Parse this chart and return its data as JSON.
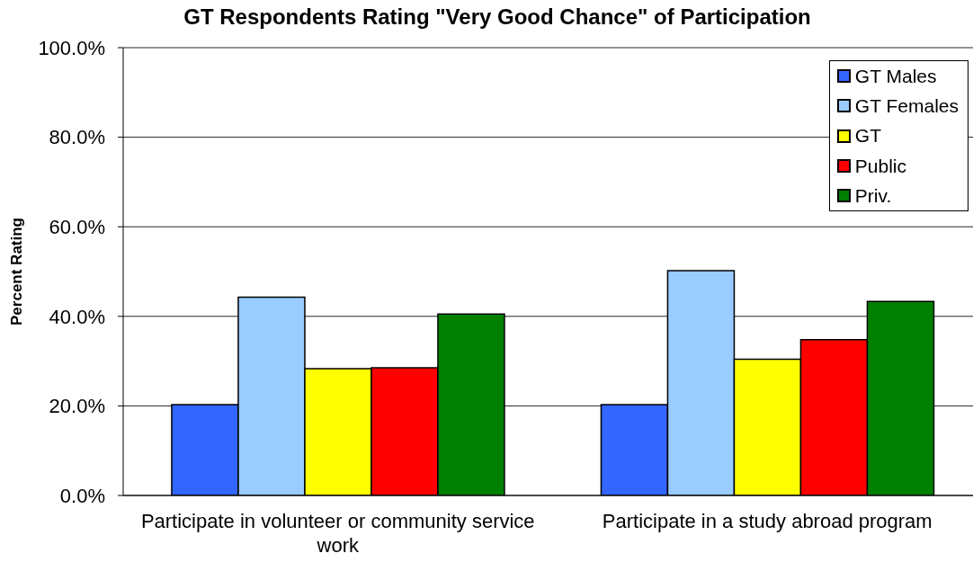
{
  "chart_data": {
    "type": "bar",
    "title": "GT Respondents Rating \"Very Good Chance\" of Participation",
    "ylabel": "Percent Rating",
    "categories": [
      "Participate in volunteer or community service work",
      "Participate in a study abroad program"
    ],
    "series": [
      {
        "name": "GT Males",
        "color": "#3366ff",
        "values": [
          20.3,
          20.3
        ]
      },
      {
        "name": "GT Females",
        "color": "#99ccff",
        "values": [
          44.3,
          50.2
        ]
      },
      {
        "name": "GT",
        "color": "#ffff00",
        "values": [
          28.3,
          30.4
        ]
      },
      {
        "name": "Public",
        "color": "#ff0000",
        "values": [
          28.5,
          34.8
        ]
      },
      {
        "name": "Priv.",
        "color": "#008000",
        "values": [
          40.5,
          43.3
        ]
      }
    ],
    "ylim": [
      0,
      100
    ],
    "yticks": [
      {
        "value": 0,
        "label": "0.0%"
      },
      {
        "value": 20,
        "label": "20.0%"
      },
      {
        "value": 40,
        "label": "40.0%"
      },
      {
        "value": 60,
        "label": "60.0%"
      },
      {
        "value": 80,
        "label": "80.0%"
      },
      {
        "value": 100,
        "label": "100.0%"
      }
    ],
    "grid": "y",
    "legend": "top right"
  }
}
